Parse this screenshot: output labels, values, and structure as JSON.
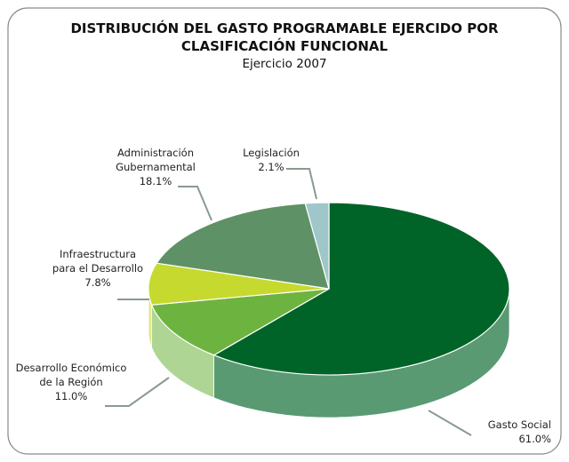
{
  "chart_data": {
    "type": "pie",
    "title": "DISTRIBUCIÓN DEL GASTO PROGRAMABLE EJERCIDO POR\nCLASIFICACIÓN FUNCIONAL",
    "subtitle": "Ejercicio 2007",
    "categories": [
      "Gasto Social",
      "Desarrollo Económico\nde la Región",
      "Infraestructura\npara el Desarrollo",
      "Administración\nGubernamental",
      "Legislación"
    ],
    "values": [
      61.0,
      11.0,
      7.8,
      18.1,
      2.1
    ],
    "value_labels": [
      "61.0%",
      "11.0%",
      "7.8%",
      "18.1%",
      "2.1%"
    ],
    "colors": [
      "#006428",
      "#6db33f",
      "#c6d92e",
      "#5f9166",
      "#9fc6c9"
    ]
  }
}
